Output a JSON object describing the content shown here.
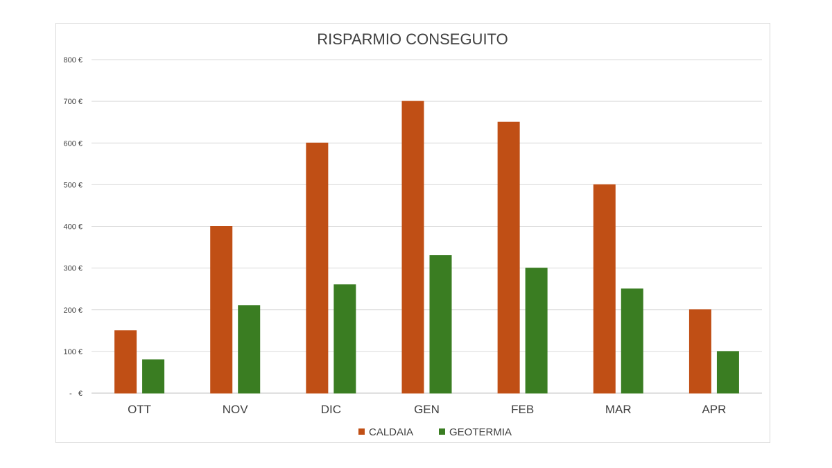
{
  "chart_data": {
    "type": "bar",
    "title": "RISPARMIO CONSEGUITO",
    "xlabel": "",
    "ylabel": "",
    "categories": [
      "OTT",
      "NOV",
      "DIC",
      "GEN",
      "FEB",
      "MAR",
      "APR"
    ],
    "series": [
      {
        "name": "CALDAIA",
        "color": "#C04F15",
        "values": [
          150,
          400,
          600,
          700,
          650,
          500,
          200
        ]
      },
      {
        "name": "GEOTERMIA",
        "color": "#3A7D22",
        "values": [
          80,
          210,
          260,
          330,
          300,
          250,
          100
        ]
      }
    ],
    "ylim": [
      0,
      800
    ],
    "yticks": [
      0,
      100,
      200,
      300,
      400,
      500,
      600,
      700,
      800
    ],
    "ytick_labels": [
      "-   €",
      "100 €",
      "200 €",
      "300 €",
      "400 €",
      "500 €",
      "600 €",
      "700 €",
      "800 €"
    ],
    "grid": true,
    "legend_position": "bottom"
  }
}
